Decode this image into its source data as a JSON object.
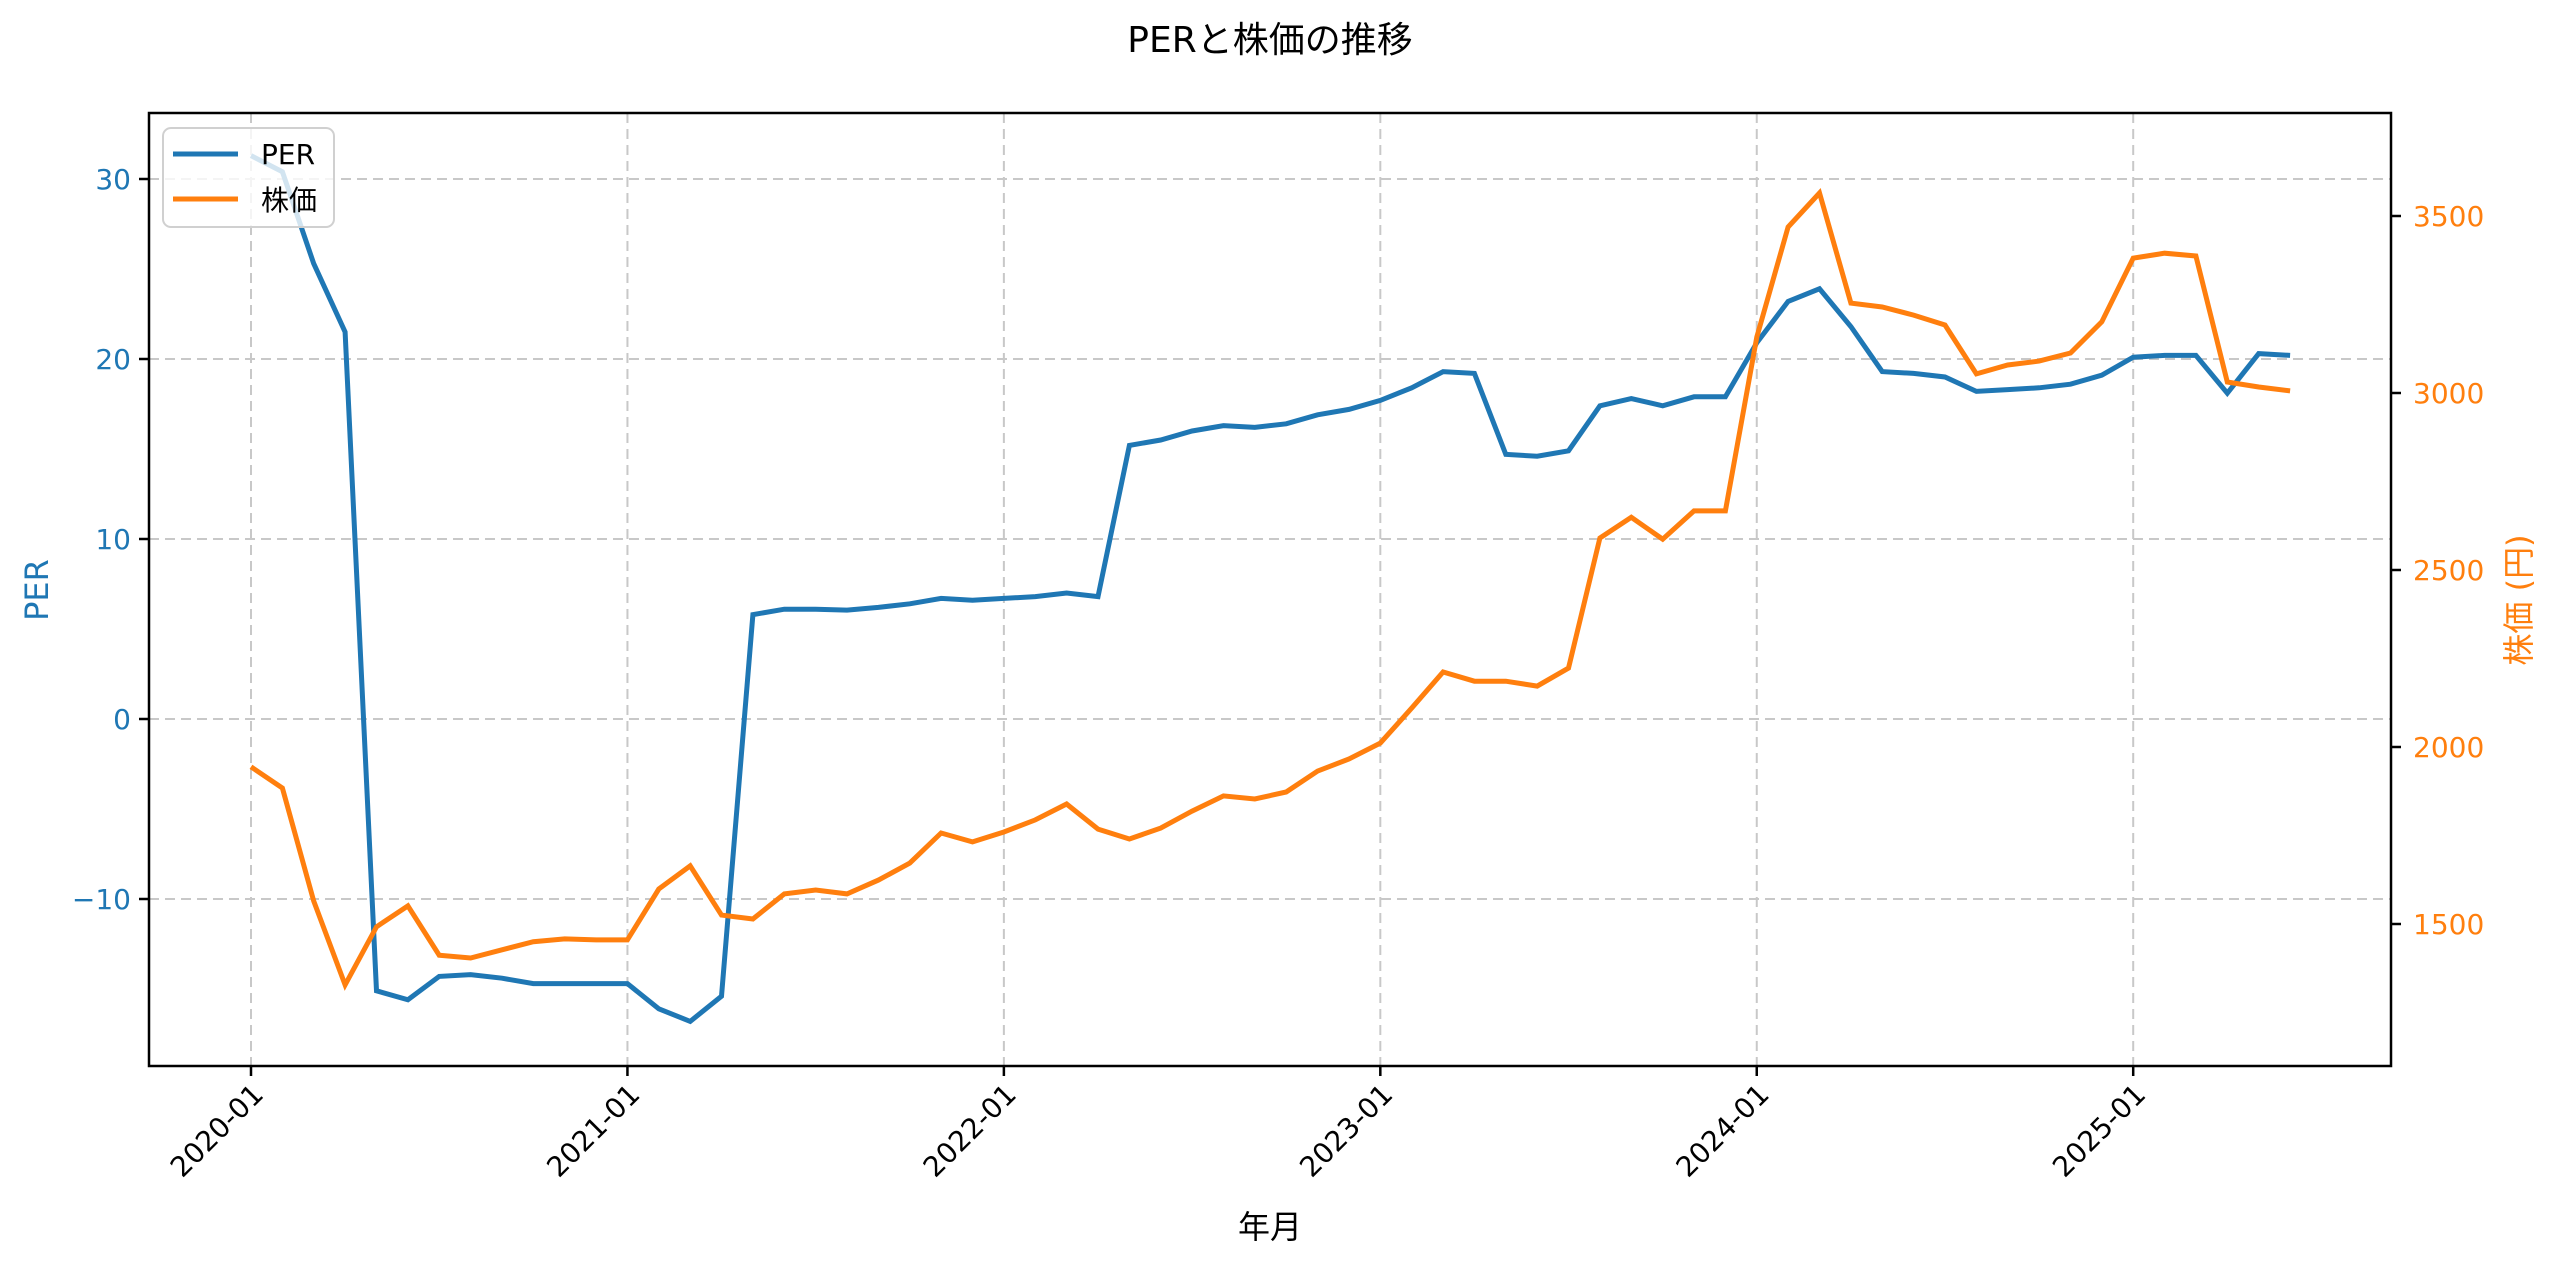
{
  "chart_data": {
    "type": "line",
    "title": "PERと株価の推移",
    "xlabel": "年月",
    "ylabel": "PER",
    "ylabel_right": "株価 (円)",
    "x_ticks": [
      "2020-01",
      "2021-01",
      "2022-01",
      "2023-01",
      "2024-01",
      "2025-01"
    ],
    "y_ticks_left": [
      -10,
      0,
      10,
      20,
      30
    ],
    "y_ticks_right": [
      1500,
      2000,
      2500,
      3000,
      3500
    ],
    "ylim_left": [
      -18.6,
      33.6
    ],
    "ylim_right": [
      1100,
      3790
    ],
    "grid": true,
    "legend_position": "upper left",
    "x": [
      "2020-01",
      "2020-02",
      "2020-03",
      "2020-04",
      "2020-05",
      "2020-06",
      "2020-07",
      "2020-08",
      "2020-09",
      "2020-10",
      "2020-11",
      "2020-12",
      "2021-01",
      "2021-02",
      "2021-03",
      "2021-04",
      "2021-05",
      "2021-06",
      "2021-07",
      "2021-08",
      "2021-09",
      "2021-10",
      "2021-11",
      "2021-12",
      "2022-01",
      "2022-02",
      "2022-03",
      "2022-04",
      "2022-05",
      "2022-06",
      "2022-07",
      "2022-08",
      "2022-09",
      "2022-10",
      "2022-11",
      "2022-12",
      "2023-01",
      "2023-02",
      "2023-03",
      "2023-04",
      "2023-05",
      "2023-06",
      "2023-07",
      "2023-08",
      "2023-09",
      "2023-10",
      "2023-11",
      "2023-12",
      "2024-01",
      "2024-02",
      "2024-03",
      "2024-04",
      "2024-05",
      "2024-06",
      "2024-07",
      "2024-08",
      "2024-09",
      "2024-10",
      "2024-11",
      "2024-12",
      "2025-01",
      "2025-02",
      "2025-03",
      "2025-04",
      "2025-05",
      "2025-06"
    ],
    "series": [
      {
        "name": "PER",
        "axis": "left",
        "color": "#1f77b4",
        "values": [
          31.3,
          30.4,
          25.3,
          21.5,
          -15.1,
          -15.6,
          -14.3,
          -14.2,
          -14.4,
          -14.7,
          -14.7,
          -14.7,
          -14.7,
          -16.1,
          -16.8,
          -15.4,
          5.8,
          6.1,
          6.1,
          6.05,
          6.2,
          6.4,
          6.7,
          6.6,
          6.7,
          6.8,
          7.0,
          6.8,
          15.2,
          15.5,
          16.0,
          16.3,
          16.2,
          16.4,
          16.9,
          17.2,
          17.7,
          18.4,
          19.3,
          19.2,
          14.7,
          14.6,
          14.9,
          17.4,
          17.8,
          17.4,
          17.9,
          17.9,
          20.9,
          23.2,
          23.9,
          21.8,
          19.3,
          19.2,
          19.0,
          18.2,
          18.3,
          18.4,
          18.6,
          19.1,
          20.1,
          20.2,
          20.2,
          18.1,
          20.3,
          20.2
        ]
      },
      {
        "name": "株価",
        "axis": "right",
        "color": "#ff7f0e",
        "values": [
          1944,
          1884,
          1565,
          1328,
          1492,
          1551,
          1412,
          1404,
          1427,
          1450,
          1458,
          1455,
          1455,
          1599,
          1664,
          1525,
          1514,
          1585,
          1596,
          1585,
          1624,
          1672,
          1757,
          1732,
          1760,
          1794,
          1839,
          1768,
          1740,
          1771,
          1819,
          1862,
          1853,
          1873,
          1932,
          1966,
          2011,
          2110,
          2212,
          2186,
          2186,
          2172,
          2223,
          2590,
          2649,
          2587,
          2667,
          2667,
          3158,
          3469,
          3565,
          3254,
          3243,
          3220,
          3192,
          3054,
          3079,
          3090,
          3113,
          3201,
          3381,
          3395,
          3387,
          3031,
          3017,
          3006
        ]
      }
    ]
  },
  "colors": {
    "per": "#1f77b4",
    "price": "#ff7f0e",
    "grid": "#c8c8c8",
    "axis": "#000000"
  },
  "legend": {
    "items": [
      {
        "label": "PER",
        "color": "#1f77b4"
      },
      {
        "label": "株価",
        "color": "#ff7f0e"
      }
    ]
  }
}
